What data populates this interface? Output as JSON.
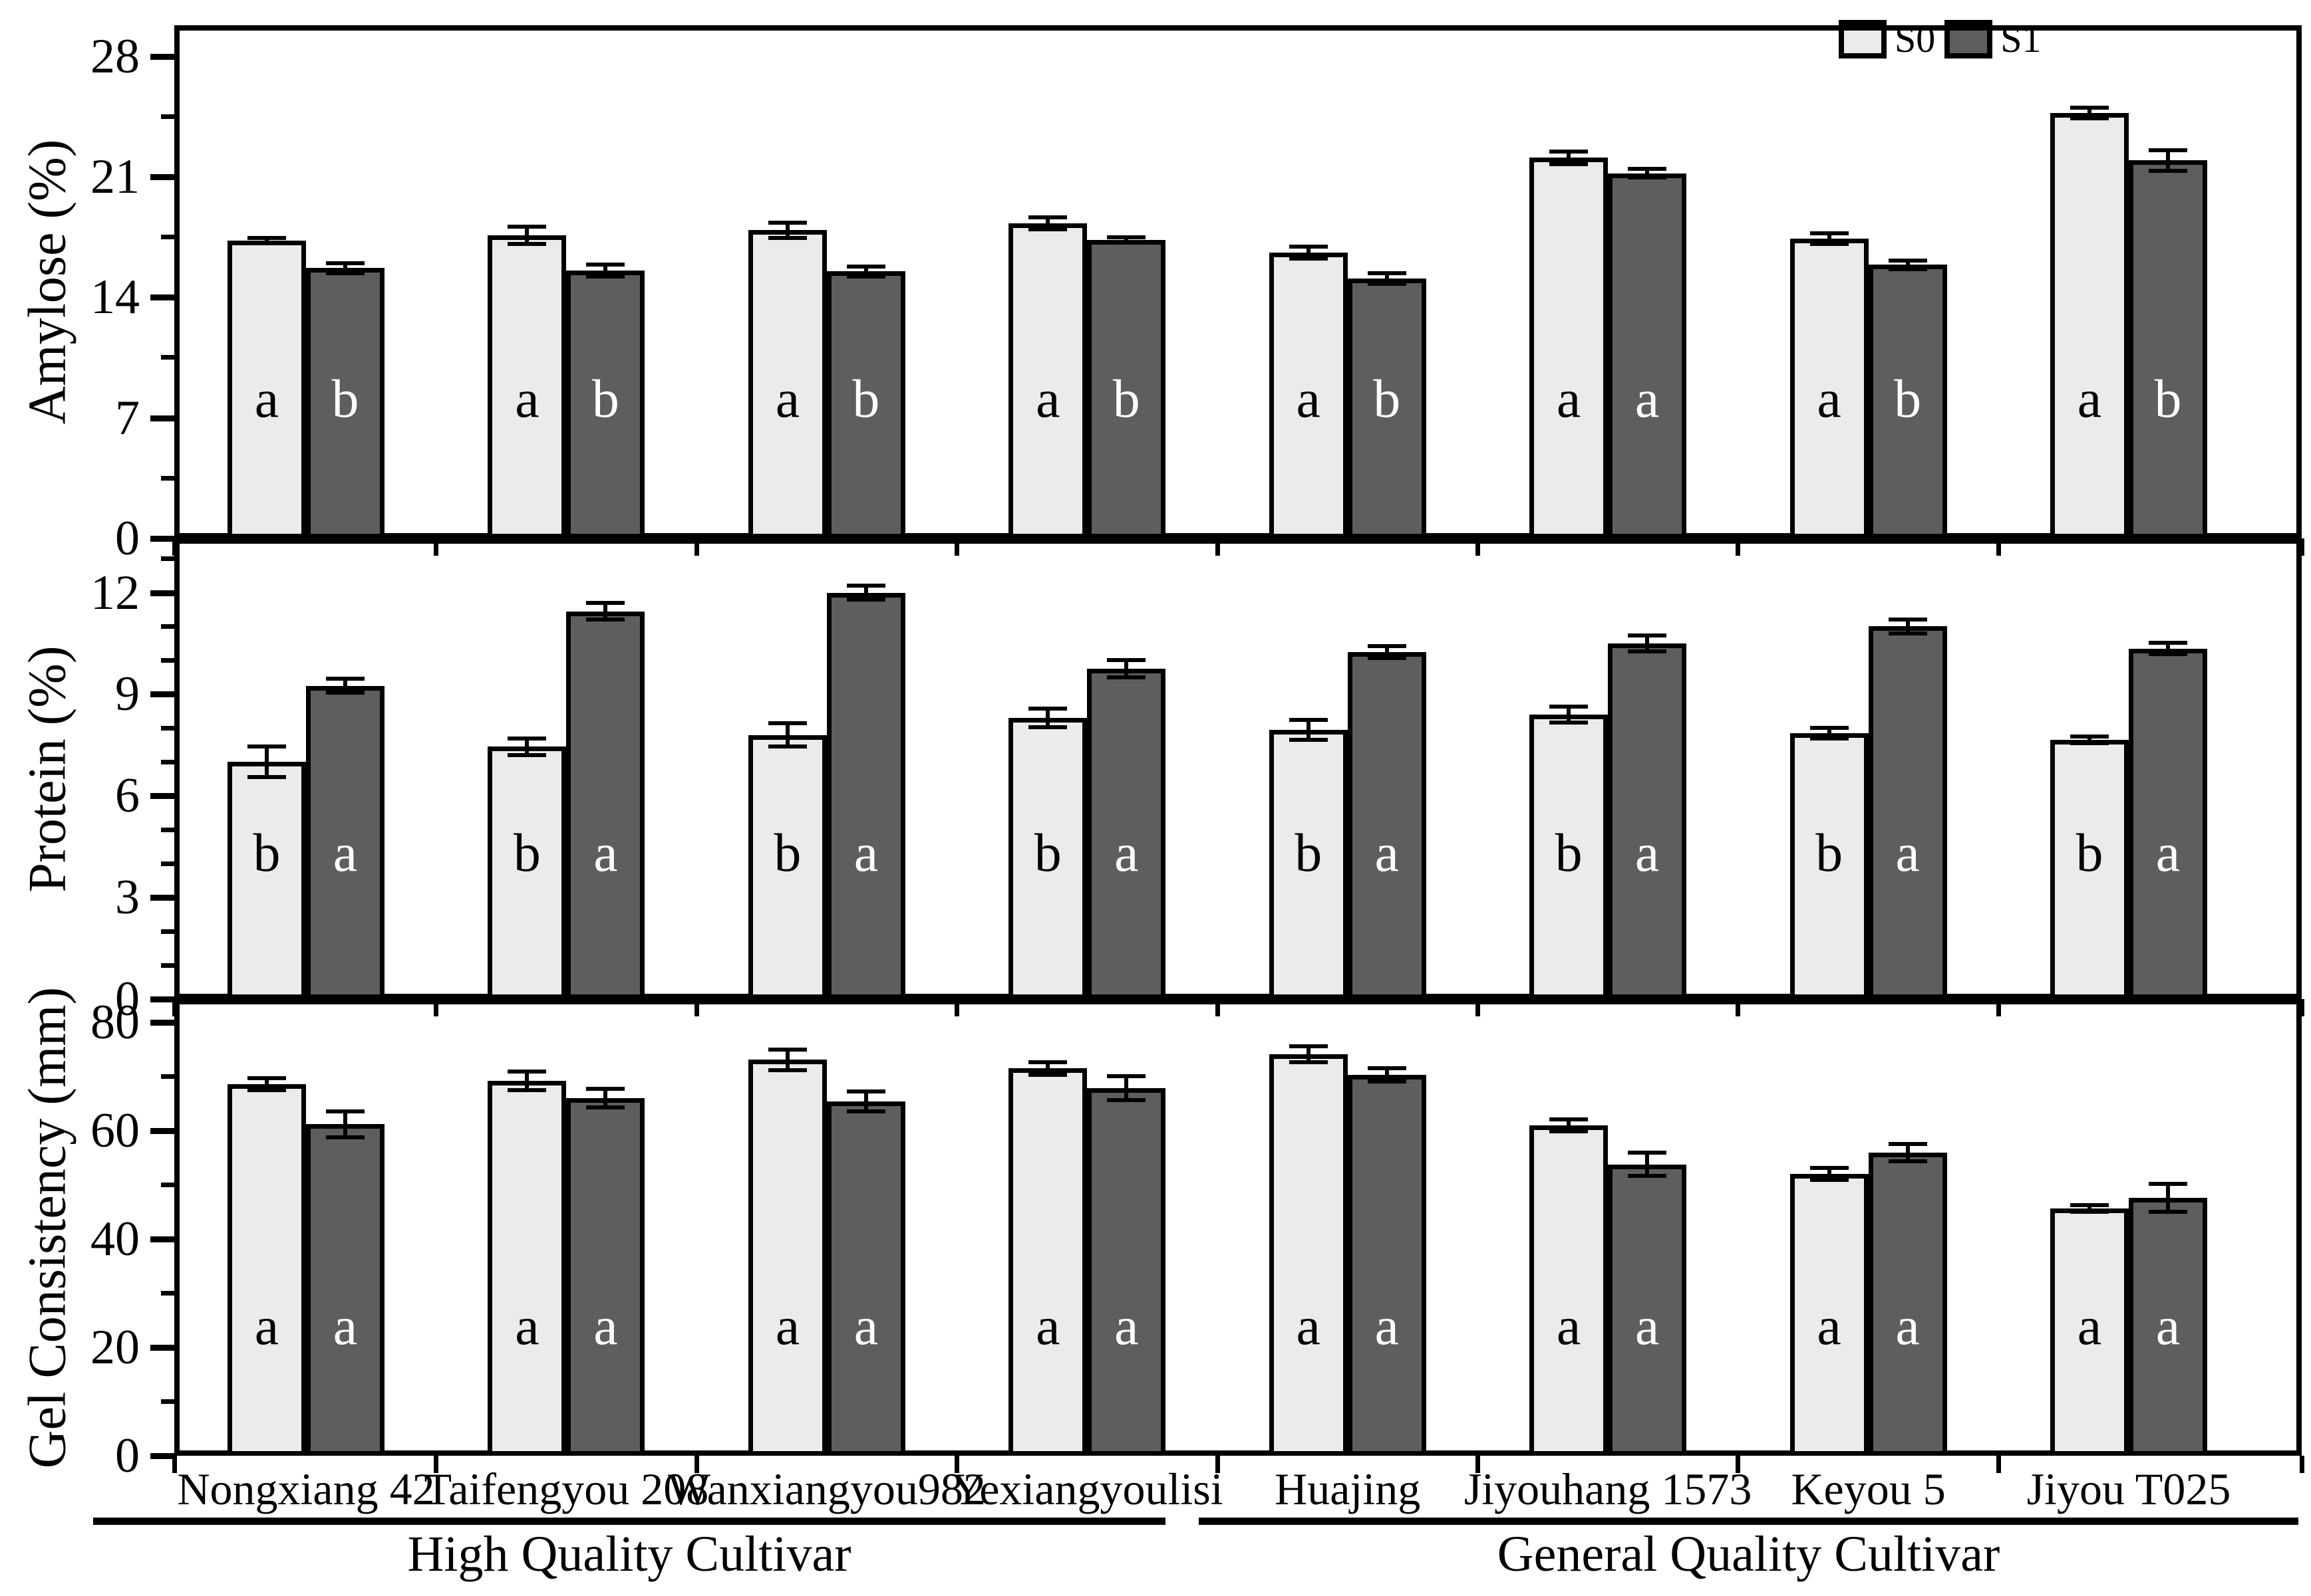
{
  "figure": {
    "background": "#ffffff",
    "colors": {
      "s0_fill": "#ebebeb",
      "s1_fill": "#5e5e5e",
      "outline": "#000000"
    },
    "legend": {
      "items": [
        {
          "label": "S0",
          "swatch": "s0_fill"
        },
        {
          "label": "S1",
          "swatch": "s1_fill"
        }
      ]
    },
    "group_labels": [
      {
        "label": "High Quality Cultivar",
        "category_span": [
          0,
          3
        ]
      },
      {
        "label": "General Quality Cultivar",
        "category_span": [
          4,
          7
        ]
      }
    ]
  },
  "chart_data": [
    {
      "type": "bar",
      "title": "",
      "ylabel": "Amylose (%)",
      "categories": [
        "Nongxiang 42",
        "Taifengyou 208",
        "Wanxiangyou982",
        "Yexiangyoulisi",
        "Huajing",
        "Jiyouhang 1573",
        "Keyou 5",
        "Jiyou T025"
      ],
      "ylim": [
        0,
        29.8
      ],
      "ytick_labels": [
        "0",
        "7",
        "14",
        "21",
        "28"
      ],
      "ytick_values": [
        0,
        7,
        14,
        21,
        28
      ],
      "minor_tick_step": 3.5,
      "grid": false,
      "legend_position": "top-right",
      "series": [
        {
          "name": "S0",
          "values": [
            17.3,
            17.6,
            17.9,
            18.3,
            16.6,
            22.1,
            17.4,
            24.7
          ],
          "errors": [
            0.15,
            0.5,
            0.45,
            0.35,
            0.35,
            0.35,
            0.3,
            0.3
          ],
          "letters": [
            "a",
            "a",
            "a",
            "a",
            "a",
            "a",
            "a",
            "a"
          ]
        },
        {
          "name": "S1",
          "values": [
            15.7,
            15.55,
            15.5,
            17.35,
            15.1,
            21.2,
            15.9,
            21.95
          ],
          "errors": [
            0.3,
            0.35,
            0.3,
            0.15,
            0.3,
            0.25,
            0.25,
            0.6
          ],
          "letters": [
            "b",
            "b",
            "b",
            "b",
            "b",
            "a",
            "b",
            "b"
          ]
        }
      ]
    },
    {
      "type": "bar",
      "title": "",
      "ylabel": "Protein (%)",
      "categories": [
        "Nongxiang 42",
        "Taifengyou 208",
        "Wanxiangyou982",
        "Yexiangyoulisi",
        "Huajing",
        "Jiyouhang 1573",
        "Keyou 5",
        "Jiyou T025"
      ],
      "ylim": [
        0,
        13.6
      ],
      "ytick_labels": [
        "0",
        "3",
        "6",
        "9",
        "12"
      ],
      "ytick_values": [
        0,
        3,
        6,
        9,
        12
      ],
      "minor_tick_step": 1,
      "grid": false,
      "series": [
        {
          "name": "S0",
          "values": [
            7.0,
            7.45,
            7.8,
            8.3,
            7.95,
            8.4,
            7.85,
            7.65
          ],
          "errors": [
            0.45,
            0.25,
            0.35,
            0.28,
            0.3,
            0.23,
            0.16,
            0.1
          ],
          "letters": [
            "b",
            "b",
            "b",
            "b",
            "b",
            "b",
            "b",
            "b"
          ]
        },
        {
          "name": "S1",
          "values": [
            9.25,
            11.45,
            12.0,
            9.75,
            10.25,
            10.5,
            11.0,
            10.35
          ],
          "errors": [
            0.2,
            0.25,
            0.2,
            0.25,
            0.18,
            0.23,
            0.2,
            0.16
          ],
          "letters": [
            "a",
            "a",
            "a",
            "a",
            "a",
            "a",
            "a",
            "a"
          ]
        }
      ]
    },
    {
      "type": "bar",
      "title": "",
      "ylabel": "Gel Consistency (mm)",
      "categories": [
        "Nongxiang 42",
        "Taifengyou 208",
        "Wanxiangyou982",
        "Yexiangyoulisi",
        "Huajing",
        "Jiyouhang 1573",
        "Keyou 5",
        "Jiyou T025"
      ],
      "ylim": [
        0,
        84.3
      ],
      "ytick_labels": [
        "0",
        "20",
        "40",
        "60",
        "80"
      ],
      "ytick_values": [
        0,
        20,
        40,
        60,
        80
      ],
      "minor_tick_step": 10,
      "grid": false,
      "series": [
        {
          "name": "S0",
          "values": [
            68.6,
            69.2,
            73.1,
            71.5,
            74.1,
            61.0,
            52.0,
            45.6
          ],
          "errors": [
            1.1,
            1.7,
            1.9,
            1.2,
            1.5,
            1.1,
            1.1,
            0.6
          ],
          "letters": [
            "a",
            "a",
            "a",
            "a",
            "a",
            "a",
            "a",
            "a"
          ]
        },
        {
          "name": "S1",
          "values": [
            61.2,
            66.0,
            65.4,
            67.9,
            70.3,
            53.8,
            56.0,
            47.6
          ],
          "errors": [
            2.4,
            1.7,
            1.8,
            2.2,
            1.2,
            2.1,
            1.6,
            2.6
          ],
          "letters": [
            "a",
            "a",
            "a",
            "a",
            "a",
            "a",
            "a",
            "a"
          ]
        }
      ]
    }
  ]
}
